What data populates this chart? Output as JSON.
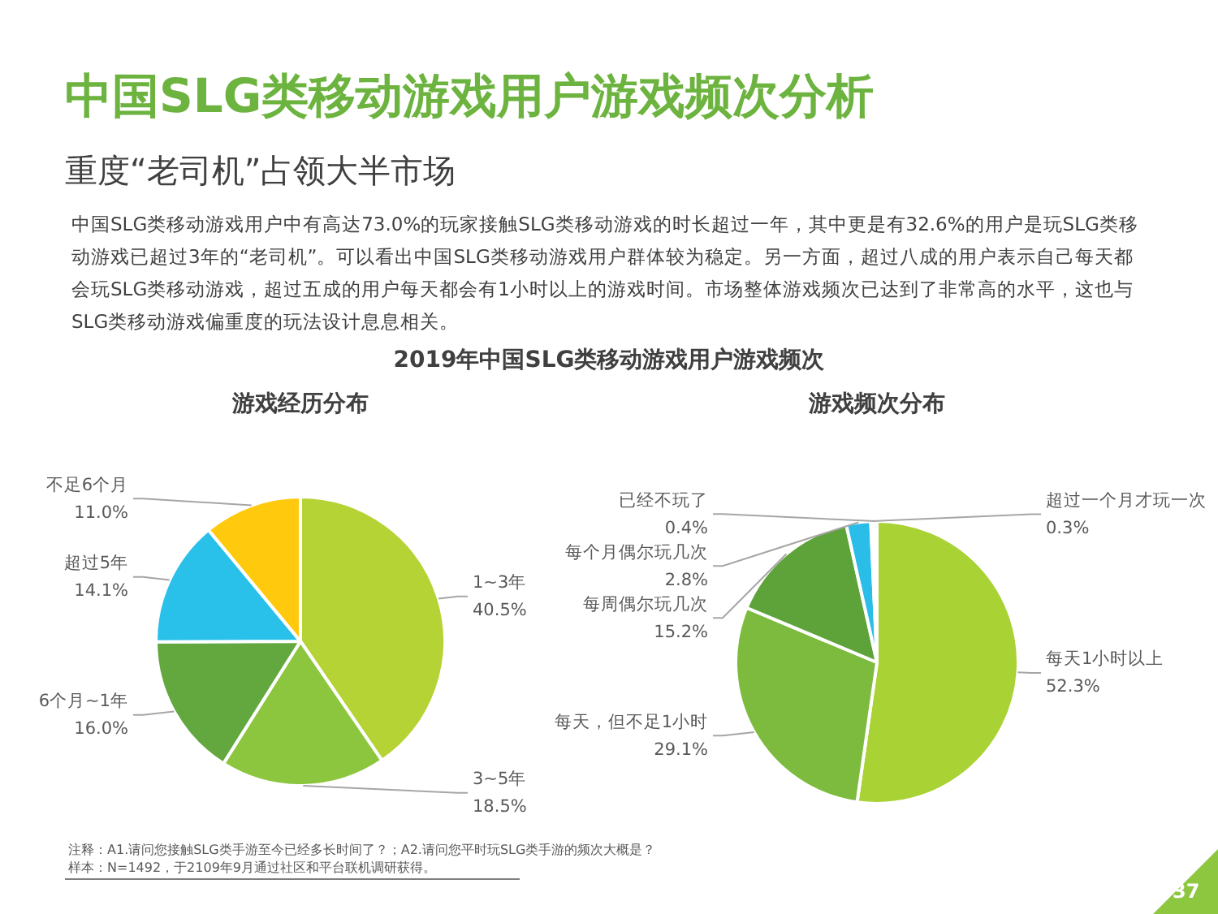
{
  "chart_data": [
    {
      "type": "pie",
      "title": "游戏经历分布",
      "categories": [
        "1~3年",
        "3~5年",
        "6个月~1年",
        "超过5年",
        "不足6个月"
      ],
      "values": [
        40.5,
        18.5,
        16.0,
        14.1,
        11.0
      ],
      "colors": [
        "#b5d334",
        "#8cc63f",
        "#62a83f",
        "#29c0ea",
        "#ffc90e"
      ],
      "value_labels": [
        "40.5%",
        "18.5%",
        "16.0%",
        "14.1%",
        "11.0%"
      ],
      "legend": false,
      "annotations": [
        "中国SLG类移动游戏用户游戏频次分析",
        "重度“老司机”占领大半市场",
        "中国SLG类移动游戏用户中有高达73.0%的玩家接触SLG类移动游戏的时长超过一年，其中更是有32.6%的用户是玩SLG类移动游戏已超过3年的“老司机”。可以看出中国SLG类移动游戏用户群体较为稳定。另一方面，超过八成的用户表示自己每天都会玩SLG类移动游戏，超过五成的用户每天都会有1小时以上的游戏时间。市场整体游戏频次已达到了非常高的水平，这也与SLG类移动游戏偏重度的玩法设计息息相关。",
        "2019年中国SLG类移动游戏用户游戏频次"
      ]
    },
    {
      "type": "pie",
      "title": "游戏频次分布",
      "categories": [
        "每天1小时以上",
        "每天，但不足1小时",
        "每周偶尔玩几次",
        "每个月偶尔玩几次",
        "超过一个月才玩一次",
        "已经不玩了"
      ],
      "values": [
        52.3,
        29.1,
        15.2,
        2.8,
        0.3,
        0.4
      ],
      "colors": [
        "#a9d234",
        "#7dbb3e",
        "#5ea33a",
        "#29bde8",
        "#ffc90e",
        "#bfbfbf"
      ],
      "value_labels": [
        "52.3%",
        "29.1%",
        "15.2%",
        "2.8%",
        "0.3%",
        "0.4%"
      ],
      "legend": false,
      "annotations": [
        "注释：A1.请问您接触SLG类手游至今已经多长时间了？；A2.请问您平时玩SLG类手游的频次大概是？",
        "样本：N=1492，于2109年9月通过社区和平台联机调研获得。",
        "37"
      ]
    }
  ]
}
